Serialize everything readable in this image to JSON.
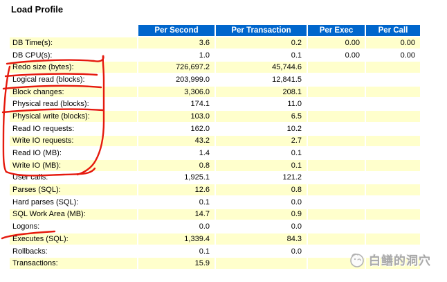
{
  "page": {
    "title": "Load Profile"
  },
  "table": {
    "columns": [
      "Per Second",
      "Per Transaction",
      "Per Exec",
      "Per Call"
    ],
    "rows": [
      {
        "label": "DB Time(s):",
        "values": [
          "3.6",
          "0.2",
          "0.00",
          "0.00"
        ]
      },
      {
        "label": "DB CPU(s):",
        "values": [
          "1.0",
          "0.1",
          "0.00",
          "0.00"
        ]
      },
      {
        "label": "Redo size (bytes):",
        "values": [
          "726,697.2",
          "45,744.6",
          "",
          ""
        ]
      },
      {
        "label": "Logical read (blocks):",
        "values": [
          "203,999.0",
          "12,841.5",
          "",
          ""
        ]
      },
      {
        "label": "Block changes:",
        "values": [
          "3,306.0",
          "208.1",
          "",
          ""
        ]
      },
      {
        "label": "Physical read (blocks):",
        "values": [
          "174.1",
          "11.0",
          "",
          ""
        ]
      },
      {
        "label": "Physical write (blocks):",
        "values": [
          "103.0",
          "6.5",
          "",
          ""
        ]
      },
      {
        "label": "Read IO requests:",
        "values": [
          "162.0",
          "10.2",
          "",
          ""
        ]
      },
      {
        "label": "Write IO requests:",
        "values": [
          "43.2",
          "2.7",
          "",
          ""
        ]
      },
      {
        "label": "Read IO (MB):",
        "values": [
          "1.4",
          "0.1",
          "",
          ""
        ]
      },
      {
        "label": "Write IO (MB):",
        "values": [
          "0.8",
          "0.1",
          "",
          ""
        ]
      },
      {
        "label": "User calls:",
        "values": [
          "1,925.1",
          "121.2",
          "",
          ""
        ]
      },
      {
        "label": "Parses (SQL):",
        "values": [
          "12.6",
          "0.8",
          "",
          ""
        ]
      },
      {
        "label": "Hard parses (SQL):",
        "values": [
          "0.1",
          "0.0",
          "",
          ""
        ]
      },
      {
        "label": "SQL Work Area (MB):",
        "values": [
          "14.7",
          "0.9",
          "",
          ""
        ]
      },
      {
        "label": "Logons:",
        "values": [
          "0.0",
          "0.0",
          "",
          ""
        ]
      },
      {
        "label": "Executes (SQL):",
        "values": [
          "1,339.4",
          "84.3",
          "",
          ""
        ]
      },
      {
        "label": "Rollbacks:",
        "values": [
          "0.1",
          "0.0",
          "",
          ""
        ]
      },
      {
        "label": "Transactions:",
        "values": [
          "15.9",
          "",
          "",
          ""
        ]
      }
    ]
  },
  "colors": {
    "header_background": "#0066CC",
    "header_text": "#FFFFFF",
    "row_odd_background": "#FFFFCC",
    "row_even_background": "#FFFFFF",
    "annotation_red": "#E51A0E"
  },
  "annotations": {
    "type": "hand-drawn red marker",
    "circled_rows": [
      "Redo size (bytes):",
      "Logical read (blocks):",
      "Block changes:",
      "Physical read (blocks):",
      "Physical write (blocks):",
      "Read IO requests:",
      "Write IO requests:",
      "Read IO (MB):",
      "Write IO (MB):"
    ],
    "underlined_rows": [
      "Redo size (bytes):",
      "Logical read (blocks):",
      "Physical read (blocks):",
      "Logons:"
    ]
  },
  "watermark": {
    "text": "白鳝的洞穴"
  }
}
